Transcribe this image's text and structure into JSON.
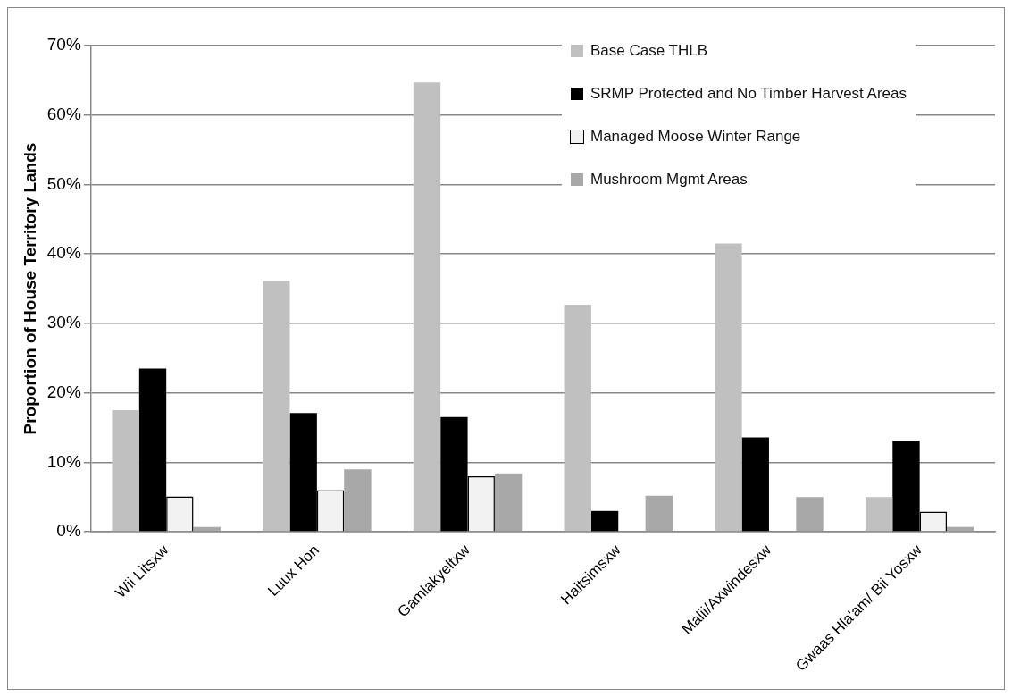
{
  "chart_data": {
    "type": "bar",
    "ylabel": "Proportion of House Territory Lands",
    "categories": [
      "Wii Litsxw",
      "Luux Hon",
      "Gamlakyeltxw",
      "Haitsimsxw",
      "Malii/Axwindesxw",
      "Gwaas Hla'am/ Bii Yosxw"
    ],
    "series": [
      {
        "name": "Base Case THLB",
        "color": "#c0c0c0",
        "values": [
          17.5,
          36.1,
          64.7,
          32.7,
          41.5,
          5.0
        ]
      },
      {
        "name": "SRMP Protected and No Timber Harvest Areas",
        "color": "#000000",
        "values": [
          23.5,
          17.1,
          16.5,
          3.0,
          13.6,
          13.1
        ]
      },
      {
        "name": "Managed Moose Winter Range",
        "color": "#f2f2f2",
        "values": [
          5.1,
          6.0,
          8.0,
          0,
          0,
          2.9
        ]
      },
      {
        "name": "Mushroom Mgmt Areas",
        "color": "#a8a8a8",
        "values": [
          0.7,
          9.0,
          8.4,
          5.2,
          5.0,
          0.7
        ]
      }
    ],
    "ylim": [
      0,
      70
    ],
    "yticks": [
      {
        "value": 0,
        "label": "0%"
      },
      {
        "value": 10,
        "label": "10%"
      },
      {
        "value": 20,
        "label": "20%"
      },
      {
        "value": 30,
        "label": "30%"
      },
      {
        "value": 40,
        "label": "40%"
      },
      {
        "value": 50,
        "label": "50%"
      },
      {
        "value": 60,
        "label": "60%"
      },
      {
        "value": 70,
        "label": "70%"
      }
    ],
    "grid": "y",
    "legend": "top right"
  }
}
